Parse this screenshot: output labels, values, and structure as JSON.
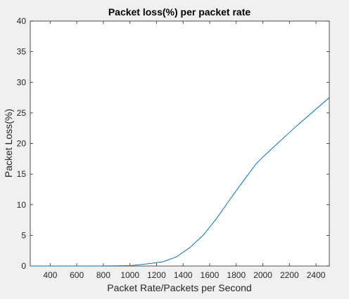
{
  "chart_data": {
    "type": "line",
    "title": "Packet loss(%) per packet rate",
    "xlabel": "Packet Rate/Packets per Second",
    "ylabel": "Packet Loss(%)",
    "xlim": [
      250,
      2500
    ],
    "ylim": [
      0,
      40
    ],
    "xticks": [
      400,
      600,
      800,
      1000,
      1200,
      1400,
      1600,
      1800,
      2000,
      2200,
      2400
    ],
    "yticks": [
      0,
      5,
      10,
      15,
      20,
      25,
      30,
      35,
      40
    ],
    "grid": false,
    "series": [
      {
        "name": "",
        "color": "#0072bd",
        "x": [
          250,
          500,
          750,
          1000,
          1150,
          1250,
          1350,
          1450,
          1550,
          1650,
          1750,
          1850,
          1950,
          2000,
          2250,
          2500
        ],
        "y": [
          0,
          0,
          0,
          0.05,
          0.4,
          0.7,
          1.5,
          3.0,
          5.0,
          7.7,
          10.8,
          13.8,
          16.7,
          17.8,
          22.8,
          27.5
        ]
      }
    ]
  }
}
